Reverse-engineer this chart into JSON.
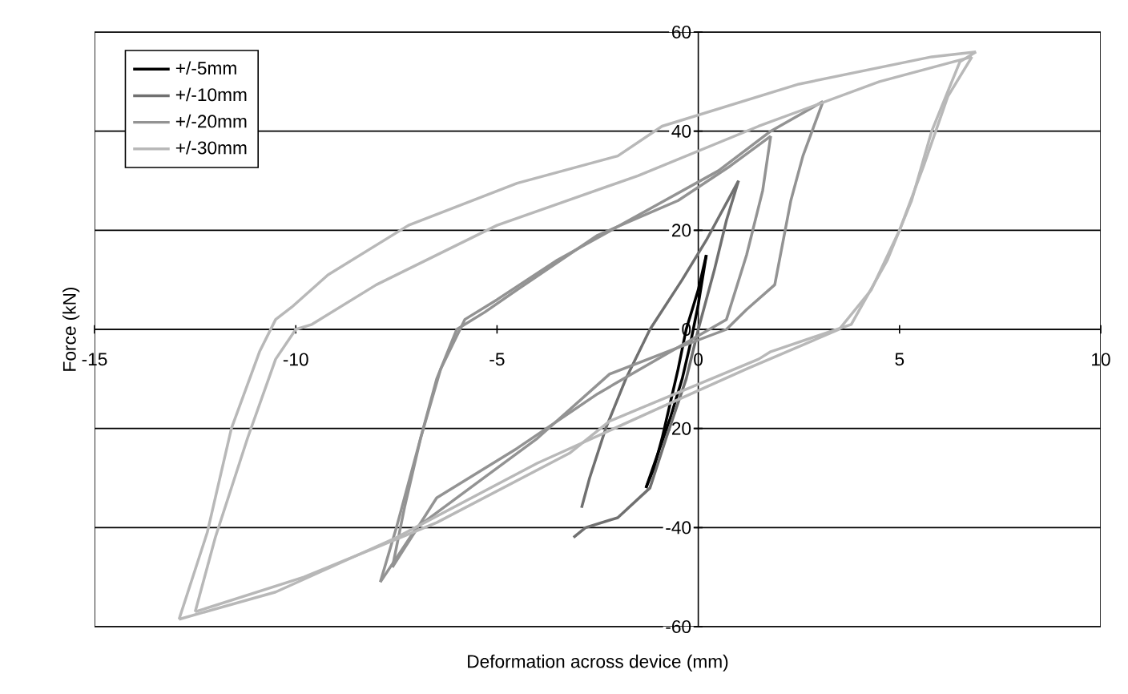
{
  "chart_data": {
    "type": "line",
    "xlabel": "Deformation across device (mm)",
    "ylabel": "Force (kN)",
    "xlim": [
      -15,
      10
    ],
    "ylim": [
      -60,
      60
    ],
    "xticks": [
      -15,
      -10,
      -5,
      0,
      5,
      10
    ],
    "yticks": [
      -60,
      -40,
      -20,
      0,
      20,
      40,
      60
    ],
    "grid": "y",
    "legend": "top left",
    "marker": "none",
    "line_style": "solid",
    "series": [
      {
        "name": "+/-5mm",
        "color": "#000000",
        "x": [
          -1.3,
          -1.0,
          -0.7,
          -0.4,
          -0.2,
          0.0,
          0.2
        ],
        "values": [
          -32,
          -25,
          -18,
          -10,
          -3,
          5,
          15
        ]
      },
      {
        "color": "#000000",
        "x": [
          0.2,
          0.0,
          -0.3,
          -0.5,
          -0.7,
          -0.9,
          -1.1,
          -1.3
        ],
        "values": [
          15,
          8,
          0,
          -8,
          -15,
          -22,
          -28,
          -32
        ]
      },
      {
        "name": "+/-10mm",
        "color": "#707070",
        "x": [
          -3.1,
          -2.8,
          -2.0,
          -1.2,
          -0.8,
          -0.3,
          0.0,
          0.4,
          0.7,
          1.0
        ],
        "values": [
          -42,
          -40,
          -38,
          -32,
          -22,
          -10,
          0,
          12,
          22,
          30
        ]
      },
      {
        "color": "#707070",
        "x": [
          1.0,
          0.8,
          0.2,
          -0.4,
          -1.2,
          -1.8,
          -2.3,
          -2.7,
          -2.9
        ],
        "values": [
          30,
          27,
          18,
          10,
          0,
          -10,
          -20,
          -30,
          -36
        ]
      },
      {
        "name": "+/-20mm",
        "color": "#939393",
        "x": [
          -7.9,
          -7.5,
          -7.0,
          -6.5,
          -6.0,
          -5.3,
          -4.5,
          -2.5,
          -0.5,
          0.8,
          1.8
        ],
        "values": [
          -51,
          -40,
          -25,
          -10,
          0,
          3.5,
          8,
          19,
          26,
          33,
          39
        ]
      },
      {
        "color": "#939393",
        "x": [
          1.8,
          1.6,
          1.2,
          0.7,
          -0.8,
          -2.5,
          -4.5,
          -6.5,
          -7.6
        ],
        "values": [
          39,
          28,
          15,
          2,
          -5,
          -13,
          -24,
          -34,
          -48
        ]
      },
      {
        "color": "#939393",
        "x": [
          -7.6,
          -7.3,
          -6.9,
          -6.4,
          -5.8,
          -5.0,
          -3.5,
          -1.5,
          0.5,
          1.8,
          3.1
        ],
        "values": [
          -48,
          -36,
          -22,
          -8,
          2,
          6,
          14,
          23,
          32,
          40,
          46
        ]
      },
      {
        "color": "#939393",
        "x": [
          3.1,
          2.6,
          2.3,
          1.9,
          1.2,
          0.7,
          -0.6,
          -2.2,
          -4.0,
          -5.5,
          -7.0,
          -7.9
        ],
        "values": [
          46,
          35,
          26,
          9,
          4,
          0,
          -4,
          -9,
          -22,
          -31,
          -40,
          -51
        ]
      },
      {
        "name": "+/-30mm",
        "color": "#b8b8b8",
        "x": [
          -12.9,
          -12.2,
          -11.6,
          -10.9,
          -10.5,
          -10.1,
          -9.2,
          -7.2,
          -4.5,
          -2.0,
          -0.9,
          2.5,
          5.8,
          6.9
        ],
        "values": [
          -58.5,
          -41,
          -20,
          -4.5,
          2,
          4.5,
          11,
          21,
          29.5,
          35,
          41,
          49.5,
          55,
          56
        ]
      },
      {
        "color": "#b8b8b8",
        "x": [
          6.9,
          6.5,
          5.8,
          5.3,
          4.7,
          3.8,
          1.8,
          1.5,
          -2.2,
          -3.2,
          -6.5,
          -9.8,
          -12.5
        ],
        "values": [
          56,
          54,
          40,
          26,
          14,
          1,
          -4.5,
          -6,
          -18.5,
          -25,
          -39,
          -50,
          -57
        ]
      },
      {
        "color": "#b8b8b8",
        "x": [
          -12.5,
          -12.0,
          -11.2,
          -10.5,
          -10.0,
          -9.6,
          -8.0,
          -5.0,
          -1.5,
          1.5,
          4.5,
          6.8
        ],
        "values": [
          -57,
          -42,
          -22,
          -6,
          0,
          1,
          9,
          21,
          31,
          41,
          50,
          55
        ]
      },
      {
        "color": "#b8b8b8",
        "x": [
          6.8,
          6.2,
          5.6,
          5.0,
          4.3,
          3.5,
          1.2,
          -1.0,
          -4.0,
          -7.5,
          -10.5,
          -12.9
        ],
        "values": [
          55,
          47,
          33,
          20,
          8,
          0,
          -8,
          -16,
          -27,
          -42,
          -53,
          -58.5
        ]
      }
    ]
  }
}
